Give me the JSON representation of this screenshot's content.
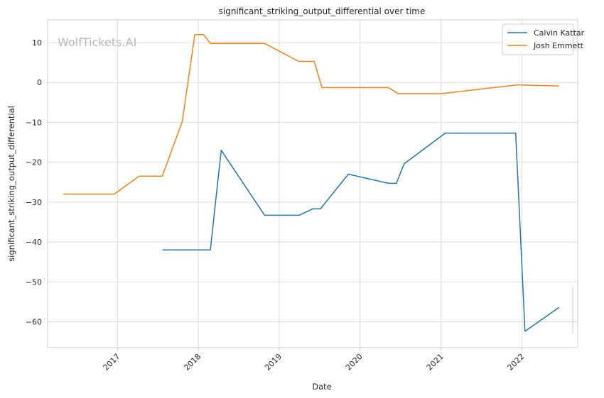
{
  "chart_data": {
    "type": "line",
    "title": "significant_striking_output_differential over time",
    "xlabel": "Date",
    "ylabel": "significant_striking_output_differential",
    "watermark": "WolfTickets.AI",
    "xlim": [
      "2016-02-20",
      "2022-09-10"
    ],
    "ylim": [
      -66.5,
      15.7
    ],
    "x_ticks": [
      "2017-01-01",
      "2018-01-01",
      "2019-01-01",
      "2020-01-01",
      "2021-01-01",
      "2022-01-01"
    ],
    "x_tick_labels": [
      "2017",
      "2018",
      "2019",
      "2020",
      "2021",
      "2022"
    ],
    "y_ticks": [
      10,
      0,
      -10,
      -20,
      -30,
      -40,
      -50,
      -60
    ],
    "y_tick_labels": [
      "10",
      "0",
      "−10",
      "−20",
      "−30",
      "−40",
      "−50",
      "−60"
    ],
    "grid": true,
    "legend_position": "top-right",
    "series": [
      {
        "name": "Calvin Kattar",
        "color": "#1f77b4",
        "points": [
          [
            "2017-07-22",
            -42.0
          ],
          [
            "2018-02-24",
            -42.0
          ],
          [
            "2018-04-14",
            -17.0
          ],
          [
            "2018-10-27",
            -33.3
          ],
          [
            "2019-04-01",
            -33.3
          ],
          [
            "2019-06-01",
            -31.7
          ],
          [
            "2019-07-06",
            -31.7
          ],
          [
            "2019-11-09",
            -23.0
          ],
          [
            "2020-05-09",
            -25.3
          ],
          [
            "2020-06-13",
            -25.3
          ],
          [
            "2020-07-18",
            -20.4
          ],
          [
            "2021-01-20",
            -12.7
          ],
          [
            "2021-12-04",
            -12.7
          ],
          [
            "2022-01-15",
            -62.4
          ],
          [
            "2022-06-18",
            -56.4
          ]
        ]
      },
      {
        "name": "Josh Emmett",
        "color": "#ff7f0e",
        "points": [
          [
            "2016-04-30",
            -28.0
          ],
          [
            "2016-12-17",
            -28.0
          ],
          [
            "2017-04-08",
            -23.5
          ],
          [
            "2017-07-22",
            -23.5
          ],
          [
            "2017-10-20",
            -9.8
          ],
          [
            "2017-12-16",
            12.0
          ],
          [
            "2018-01-25",
            12.0
          ],
          [
            "2018-02-24",
            9.8
          ],
          [
            "2018-10-27",
            9.8
          ],
          [
            "2019-03-30",
            5.3
          ],
          [
            "2019-06-08",
            5.3
          ],
          [
            "2019-07-13",
            -1.3
          ],
          [
            "2020-05-09",
            -1.3
          ],
          [
            "2020-06-20",
            -2.8
          ],
          [
            "2021-01-02",
            -2.8
          ],
          [
            "2021-12-11",
            -0.6
          ],
          [
            "2022-06-18",
            -0.9
          ]
        ]
      }
    ]
  }
}
